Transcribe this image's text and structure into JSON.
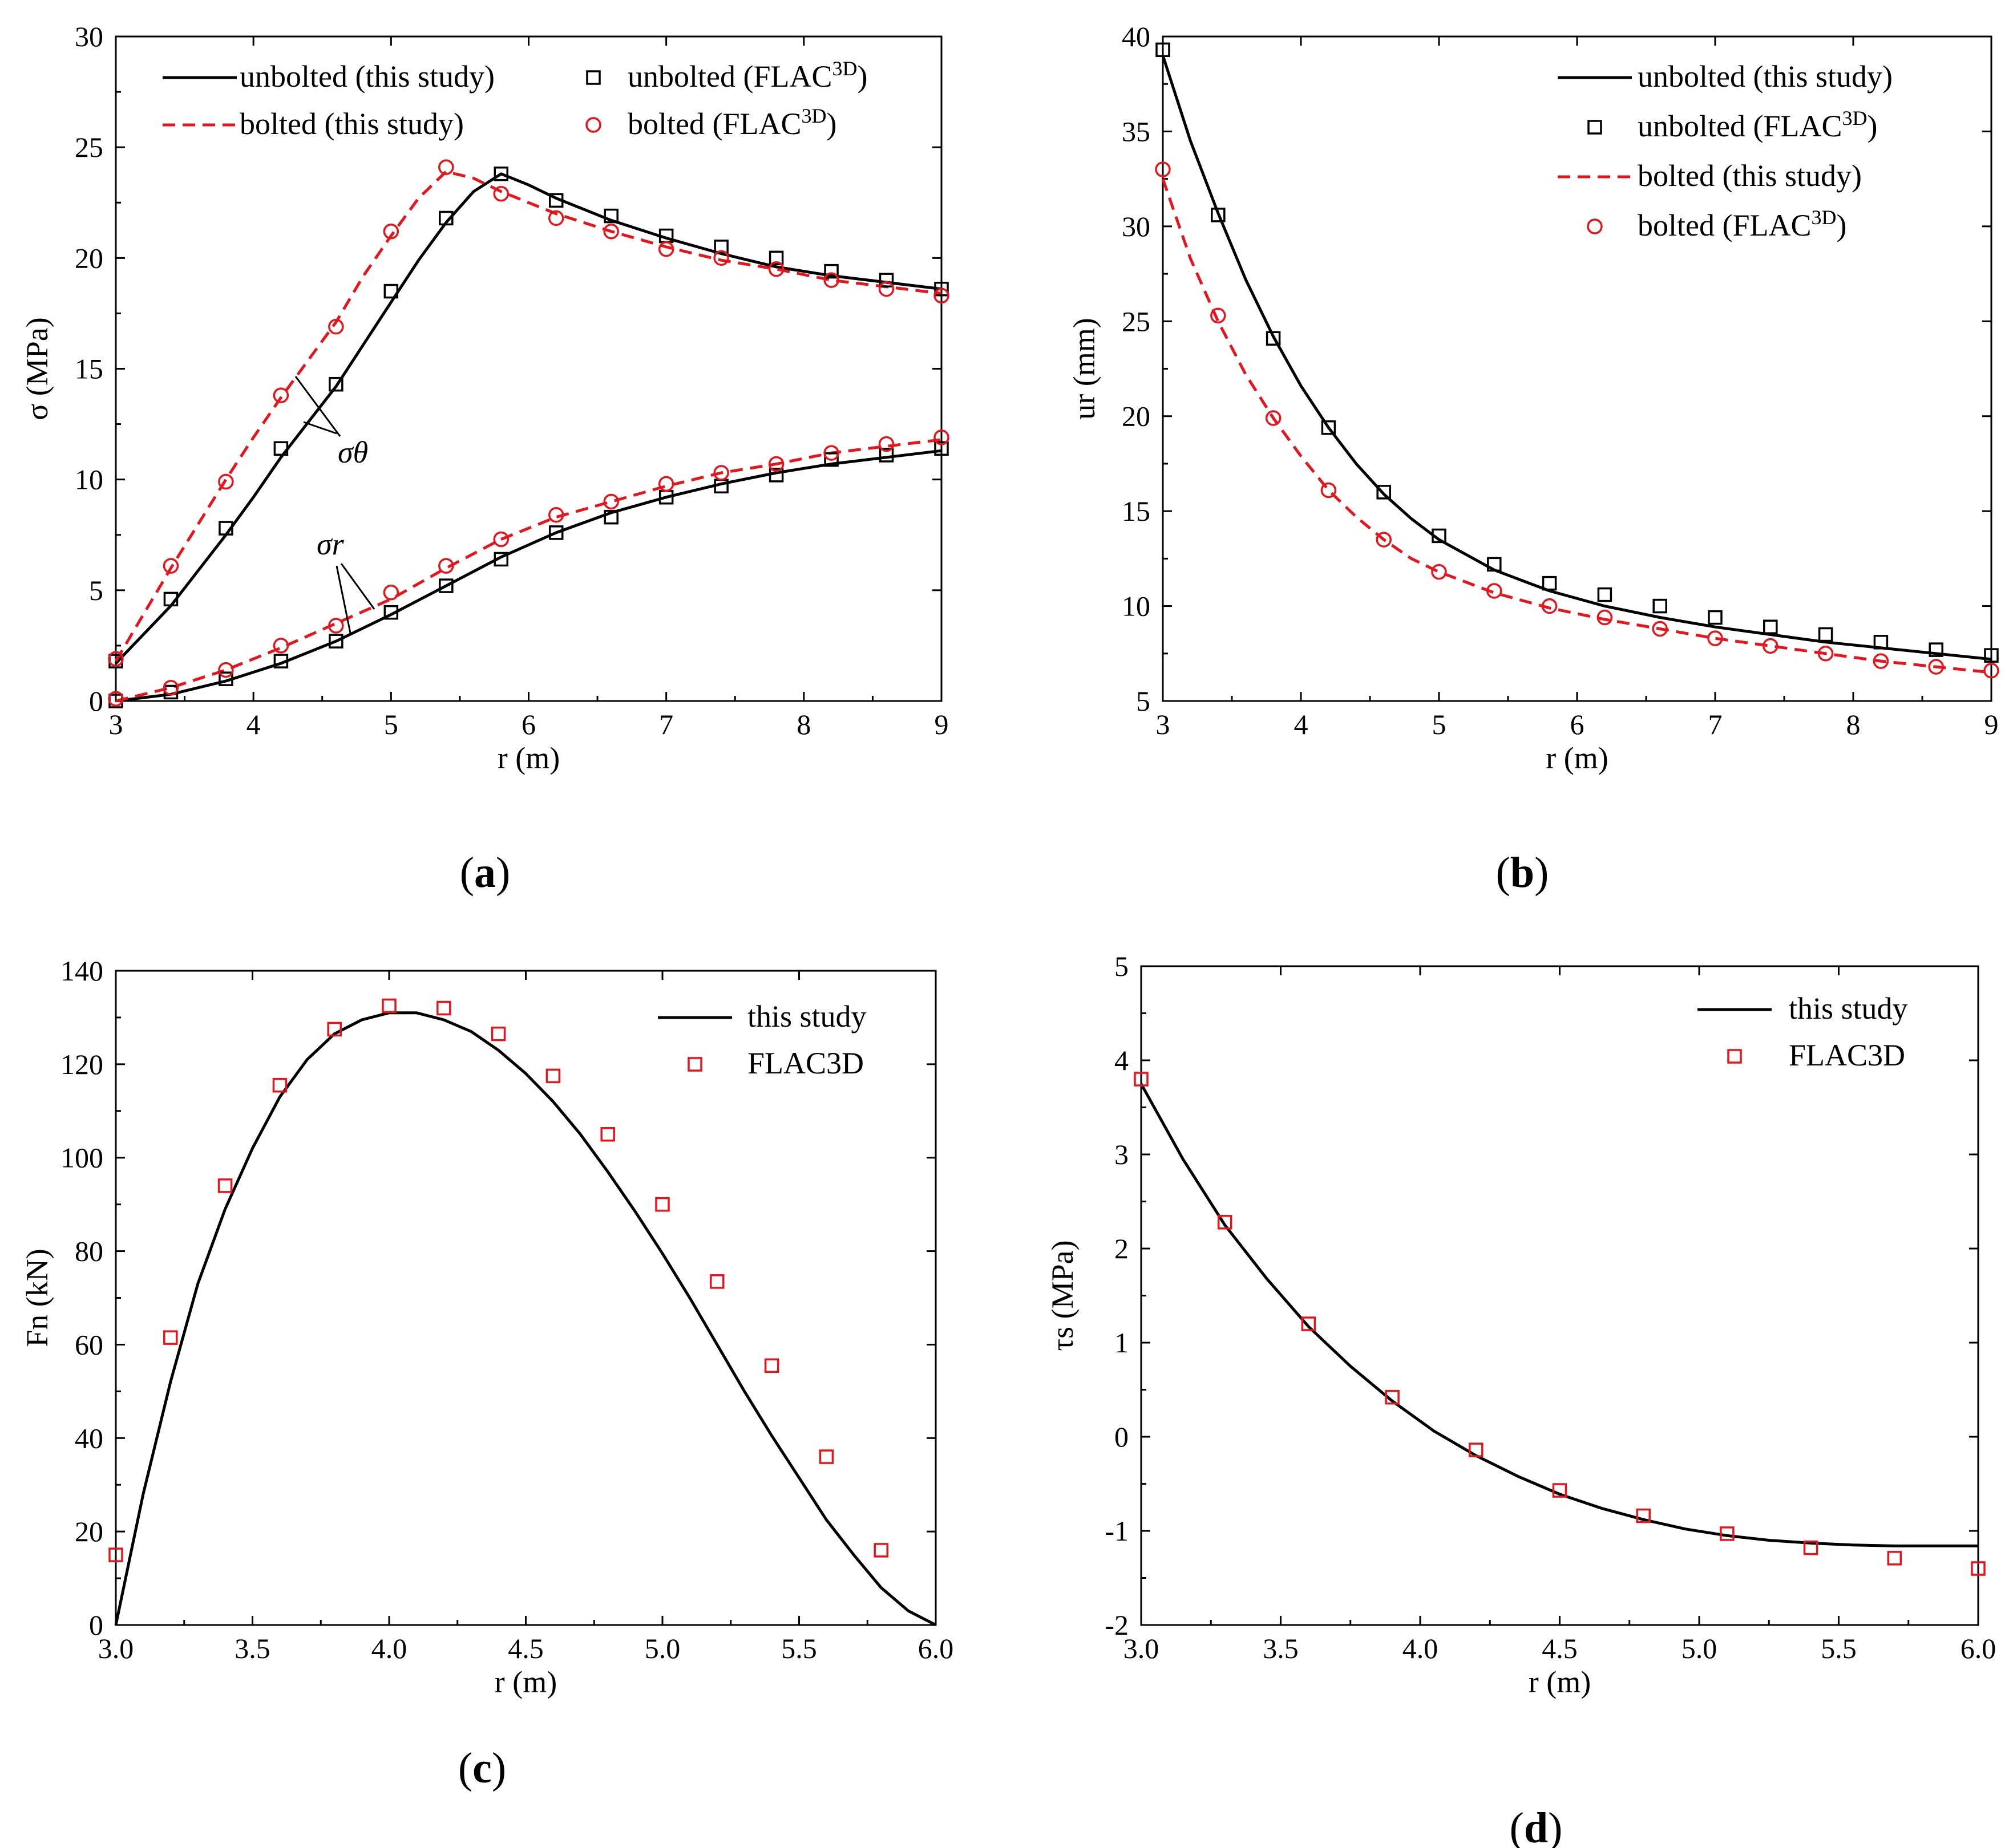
{
  "colors": {
    "black": "#000000",
    "red": "#e8141b"
  },
  "chart_data": [
    {
      "panel": "(a)",
      "panel_letter": "a",
      "type": "line",
      "xlabel": "r (m)",
      "ylabel": "σ (MPa)",
      "xlim": [
        3,
        9
      ],
      "ylim": [
        0,
        30
      ],
      "xticks": [
        3,
        4,
        5,
        6,
        7,
        8,
        9
      ],
      "xtick_labels": [
        "3",
        "4",
        "5",
        "6",
        "7",
        "8",
        "9"
      ],
      "yticks": [
        0,
        5,
        10,
        15,
        20,
        25,
        30
      ],
      "ytick_labels": [
        "0",
        "5",
        "10",
        "15",
        "20",
        "25",
        "30"
      ],
      "legend_position": "top",
      "annotations": [
        "σθ",
        "σr"
      ],
      "series": [
        {
          "name": "unbolted (this study) σθ",
          "legend": "unbolted (this study)",
          "style": "line",
          "color": "#000000",
          "x": [
            3.0,
            3.2,
            3.4,
            3.6,
            3.8,
            4.0,
            4.2,
            4.4,
            4.6,
            4.8,
            5.0,
            5.2,
            5.4,
            5.6,
            5.8,
            6.0,
            6.2,
            6.6,
            7.0,
            7.4,
            7.8,
            8.2,
            8.6,
            9.0
          ],
          "y": [
            1.7,
            3.0,
            4.3,
            5.9,
            7.5,
            9.2,
            11.0,
            12.6,
            14.2,
            16.1,
            18.0,
            19.9,
            21.6,
            23.0,
            23.8,
            23.3,
            22.7,
            21.7,
            20.9,
            20.2,
            19.6,
            19.2,
            18.9,
            18.6
          ]
        },
        {
          "name": "unbolted (this study) σr",
          "legend": "",
          "style": "line",
          "color": "#000000",
          "x": [
            3.0,
            3.4,
            3.8,
            4.2,
            4.6,
            5.0,
            5.4,
            5.8,
            6.2,
            6.6,
            7.0,
            7.4,
            7.8,
            8.2,
            8.6,
            9.0
          ],
          "y": [
            0.0,
            0.3,
            0.9,
            1.7,
            2.7,
            3.9,
            5.2,
            6.5,
            7.6,
            8.5,
            9.2,
            9.8,
            10.3,
            10.7,
            11.0,
            11.3
          ]
        },
        {
          "name": "bolted (this study) σθ",
          "legend": "bolted (this study)",
          "style": "dashed",
          "color": "#e8141b",
          "x": [
            3.0,
            3.2,
            3.4,
            3.6,
            3.8,
            4.0,
            4.2,
            4.4,
            4.6,
            4.8,
            5.0,
            5.2,
            5.4,
            5.6,
            5.8,
            6.2,
            6.6,
            7.0,
            7.4,
            7.8,
            8.2,
            8.6,
            9.0
          ],
          "y": [
            1.8,
            3.9,
            6.0,
            8.0,
            10.0,
            11.9,
            13.7,
            15.4,
            17.1,
            19.2,
            21.0,
            22.7,
            23.9,
            23.6,
            23.0,
            22.0,
            21.2,
            20.5,
            19.9,
            19.5,
            19.0,
            18.7,
            18.4
          ]
        },
        {
          "name": "bolted (this study) σr",
          "legend": "",
          "style": "dashed",
          "color": "#e8141b",
          "x": [
            3.0,
            3.4,
            3.8,
            4.2,
            4.6,
            5.0,
            5.4,
            5.8,
            6.2,
            6.6,
            7.0,
            7.4,
            7.8,
            8.2,
            8.6,
            9.0
          ],
          "y": [
            0.0,
            0.6,
            1.4,
            2.4,
            3.5,
            4.6,
            6.0,
            7.3,
            8.3,
            9.0,
            9.7,
            10.3,
            10.7,
            11.2,
            11.5,
            11.8
          ]
        },
        {
          "name": "unbolted (FLAC3D) σθ",
          "legend": "unbolted (FLAC3D)",
          "style": "square",
          "color": "#000000",
          "x": [
            3.0,
            3.4,
            3.8,
            4.2,
            4.6,
            5.0,
            5.4,
            5.8,
            6.2,
            6.6,
            7.0,
            7.4,
            7.8,
            8.2,
            8.6,
            9.0
          ],
          "y": [
            1.8,
            4.6,
            7.8,
            11.4,
            14.3,
            18.5,
            21.8,
            23.8,
            22.6,
            21.9,
            21.0,
            20.5,
            20.0,
            19.4,
            19.0,
            18.6
          ]
        },
        {
          "name": "unbolted (FLAC3D) σr",
          "legend": "",
          "style": "square",
          "color": "#000000",
          "x": [
            3.0,
            3.4,
            3.8,
            4.2,
            4.6,
            5.0,
            5.4,
            5.8,
            6.2,
            6.6,
            7.0,
            7.4,
            7.8,
            8.2,
            8.6,
            9.0
          ],
          "y": [
            0.0,
            0.4,
            1.0,
            1.8,
            2.7,
            4.0,
            5.2,
            6.4,
            7.6,
            8.3,
            9.2,
            9.7,
            10.2,
            10.9,
            11.1,
            11.4
          ]
        },
        {
          "name": "bolted (FLAC3D) σθ",
          "legend": "bolted (FLAC3D)",
          "style": "circle",
          "color": "#e8141b",
          "x": [
            3.0,
            3.4,
            3.8,
            4.2,
            4.6,
            5.0,
            5.4,
            5.8,
            6.2,
            6.6,
            7.0,
            7.4,
            7.8,
            8.2,
            8.6,
            9.0
          ],
          "y": [
            1.9,
            6.1,
            9.9,
            13.8,
            16.9,
            21.2,
            24.1,
            22.9,
            21.8,
            21.2,
            20.4,
            20.0,
            19.5,
            19.0,
            18.6,
            18.3
          ]
        },
        {
          "name": "bolted (FLAC3D) σr",
          "legend": "",
          "style": "circle",
          "color": "#e8141b",
          "x": [
            3.0,
            3.4,
            3.8,
            4.2,
            4.6,
            5.0,
            5.4,
            5.8,
            6.2,
            6.6,
            7.0,
            7.4,
            7.8,
            8.2,
            8.6,
            9.0
          ],
          "y": [
            0.1,
            0.6,
            1.4,
            2.5,
            3.4,
            4.9,
            6.1,
            7.3,
            8.4,
            9.0,
            9.8,
            10.3,
            10.7,
            11.2,
            11.6,
            11.9
          ]
        }
      ]
    },
    {
      "panel": "(b)",
      "panel_letter": "b",
      "type": "line",
      "xlabel": "r (m)",
      "ylabel": "ur (mm)",
      "xlim": [
        3,
        9
      ],
      "ylim": [
        5,
        40
      ],
      "xticks": [
        3,
        4,
        5,
        6,
        7,
        8,
        9
      ],
      "xtick_labels": [
        "3",
        "4",
        "5",
        "6",
        "7",
        "8",
        "9"
      ],
      "yticks": [
        5,
        10,
        15,
        20,
        25,
        30,
        35,
        40
      ],
      "ytick_labels": [
        "5",
        "10",
        "15",
        "20",
        "25",
        "30",
        "35",
        "40"
      ],
      "legend_position": "top-right",
      "series": [
        {
          "name": "unbolted (this study)",
          "legend": "unbolted (this study)",
          "style": "line",
          "color": "#000000",
          "x": [
            3.0,
            3.2,
            3.4,
            3.6,
            3.8,
            4.0,
            4.2,
            4.4,
            4.6,
            4.8,
            5.0,
            5.4,
            5.8,
            6.2,
            6.6,
            7.0,
            7.4,
            7.8,
            8.2,
            8.6,
            9.0
          ],
          "y": [
            39.0,
            34.5,
            30.7,
            27.2,
            24.2,
            21.6,
            19.4,
            17.5,
            15.9,
            14.6,
            13.5,
            11.9,
            10.8,
            10.0,
            9.4,
            8.9,
            8.5,
            8.1,
            7.8,
            7.5,
            7.2
          ]
        },
        {
          "name": "unbolted (FLAC3D)",
          "legend": "unbolted (FLAC3D)",
          "style": "square",
          "color": "#000000",
          "x": [
            3.0,
            3.4,
            3.8,
            4.2,
            4.6,
            5.0,
            5.4,
            5.8,
            6.2,
            6.6,
            7.0,
            7.4,
            7.8,
            8.2,
            8.6,
            9.0
          ],
          "y": [
            39.3,
            30.6,
            24.1,
            19.4,
            16.0,
            13.7,
            12.2,
            11.2,
            10.6,
            10.0,
            9.4,
            8.9,
            8.5,
            8.1,
            7.7,
            7.4
          ]
        },
        {
          "name": "bolted (this study)",
          "legend": "bolted (this study)",
          "style": "dashed",
          "color": "#e8141b",
          "x": [
            3.0,
            3.2,
            3.4,
            3.6,
            3.8,
            4.0,
            4.2,
            4.4,
            4.6,
            4.8,
            5.0,
            5.4,
            5.8,
            6.2,
            6.6,
            7.0,
            7.4,
            7.8,
            8.2,
            8.6,
            9.0
          ],
          "y": [
            32.5,
            28.3,
            25.0,
            22.2,
            19.9,
            17.9,
            16.1,
            14.7,
            13.5,
            12.5,
            11.8,
            10.7,
            9.9,
            9.3,
            8.8,
            8.3,
            7.9,
            7.5,
            7.1,
            6.8,
            6.5
          ]
        },
        {
          "name": "bolted (FLAC3D)",
          "legend": "bolted (FLAC3D)",
          "style": "circle",
          "color": "#e8141b",
          "x": [
            3.0,
            3.4,
            3.8,
            4.2,
            4.6,
            5.0,
            5.4,
            5.8,
            6.2,
            6.6,
            7.0,
            7.4,
            7.8,
            8.2,
            8.6,
            9.0
          ],
          "y": [
            33.0,
            25.3,
            19.9,
            16.1,
            13.5,
            11.8,
            10.8,
            10.0,
            9.4,
            8.8,
            8.3,
            7.9,
            7.5,
            7.1,
            6.8,
            6.6
          ]
        }
      ]
    },
    {
      "panel": "(c)",
      "panel_letter": "c",
      "type": "line",
      "xlabel": "r (m)",
      "ylabel": "Fn (kN)",
      "xlim": [
        3.0,
        6.0
      ],
      "ylim": [
        0,
        140
      ],
      "xticks": [
        3.0,
        3.5,
        4.0,
        4.5,
        5.0,
        5.5,
        6.0
      ],
      "xtick_labels": [
        "3.0",
        "3.5",
        "4.0",
        "4.5",
        "5.0",
        "5.5",
        "6.0"
      ],
      "yticks": [
        0,
        20,
        40,
        60,
        80,
        100,
        120,
        140
      ],
      "ytick_labels": [
        "0",
        "20",
        "40",
        "60",
        "80",
        "100",
        "120",
        "140"
      ],
      "legend_position": "top-right",
      "series": [
        {
          "name": "this study",
          "legend": "this study",
          "style": "line",
          "color": "#000000",
          "x": [
            3.0,
            3.1,
            3.2,
            3.3,
            3.4,
            3.5,
            3.6,
            3.7,
            3.8,
            3.9,
            4.0,
            4.1,
            4.2,
            4.3,
            4.4,
            4.5,
            4.6,
            4.7,
            4.8,
            4.9,
            5.0,
            5.1,
            5.2,
            5.3,
            5.4,
            5.5,
            5.6,
            5.7,
            5.8,
            5.9,
            6.0
          ],
          "y": [
            0,
            28,
            52,
            73,
            89,
            102,
            113,
            121,
            126.5,
            129.5,
            131,
            131,
            129.5,
            127,
            123,
            118,
            112,
            105,
            97,
            88.5,
            79.5,
            70,
            60,
            50,
            40.5,
            31.5,
            22.5,
            15,
            8,
            3,
            0
          ]
        },
        {
          "name": "FLAC3D",
          "legend": "FLAC3D",
          "style": "square",
          "color": "#e8141b",
          "x": [
            3.0,
            3.2,
            3.4,
            3.6,
            3.8,
            4.0,
            4.2,
            4.4,
            4.6,
            4.8,
            5.0,
            5.2,
            5.4,
            5.6,
            5.8
          ],
          "y": [
            15,
            61.5,
            94,
            115.5,
            127.5,
            132.5,
            132,
            126.5,
            117.5,
            105,
            90,
            73.5,
            55.5,
            36,
            16
          ]
        }
      ]
    },
    {
      "panel": "(d)",
      "panel_letter": "d",
      "type": "line",
      "xlabel": "r (m)",
      "ylabel": "τs (MPa)",
      "xlim": [
        3.0,
        6.0
      ],
      "ylim": [
        -2,
        5
      ],
      "xticks": [
        3.0,
        3.5,
        4.0,
        4.5,
        5.0,
        5.5,
        6.0
      ],
      "xtick_labels": [
        "3.0",
        "3.5",
        "4.0",
        "4.5",
        "5.0",
        "5.5",
        "6.0"
      ],
      "yticks": [
        -2,
        -1,
        0,
        1,
        2,
        3,
        4,
        5
      ],
      "ytick_labels": [
        "-2",
        "-1",
        "0",
        "1",
        "2",
        "3",
        "4",
        "5"
      ],
      "legend_position": "top-right",
      "series": [
        {
          "name": "this study",
          "legend": "this study",
          "style": "line",
          "color": "#000000",
          "x": [
            3.0,
            3.15,
            3.3,
            3.45,
            3.6,
            3.75,
            3.9,
            4.05,
            4.2,
            4.35,
            4.5,
            4.65,
            4.8,
            4.95,
            5.1,
            5.25,
            5.4,
            5.55,
            5.7,
            5.85,
            6.0
          ],
          "y": [
            3.75,
            2.95,
            2.25,
            1.68,
            1.17,
            0.75,
            0.38,
            0.06,
            -0.2,
            -0.42,
            -0.61,
            -0.76,
            -0.88,
            -0.98,
            -1.05,
            -1.1,
            -1.13,
            -1.15,
            -1.16,
            -1.16,
            -1.16
          ]
        },
        {
          "name": "FLAC3D",
          "legend": "FLAC3D",
          "style": "square",
          "color": "#e8141b",
          "x": [
            3.0,
            3.3,
            3.6,
            3.9,
            4.2,
            4.5,
            4.8,
            5.1,
            5.4,
            5.7,
            6.0
          ],
          "y": [
            3.8,
            2.28,
            1.2,
            0.42,
            -0.14,
            -0.57,
            -0.84,
            -1.03,
            -1.18,
            -1.29,
            -1.4
          ]
        }
      ]
    }
  ]
}
